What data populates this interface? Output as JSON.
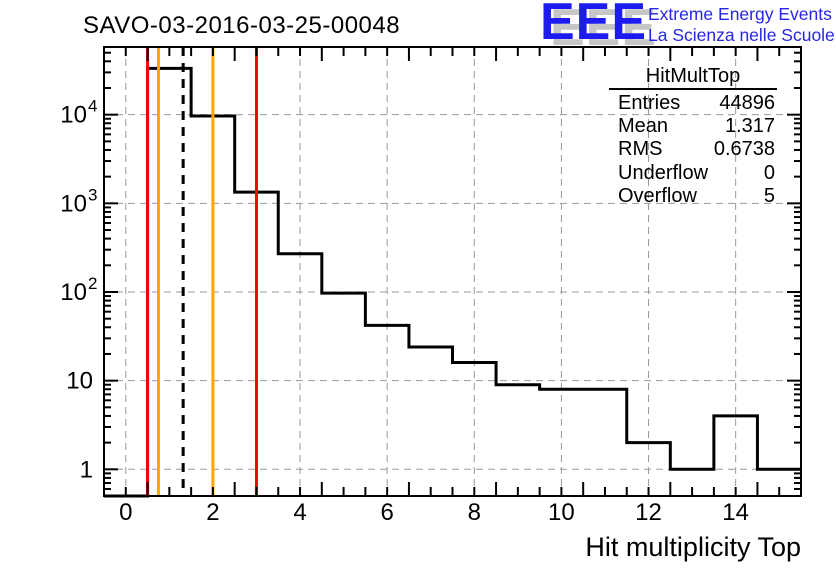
{
  "header": {
    "title": "SAVO-03-2016-03-25-00048",
    "logo": {
      "acronym": "EEE",
      "line1": "Extreme Energy Events",
      "line2": "La Scienza nelle Scuole",
      "text_color": "#2626e8",
      "shadow_color": "#c6c6c6"
    }
  },
  "stats_box": {
    "title": "HitMultTop",
    "rows": [
      {
        "label": "Entries",
        "value": "44896"
      },
      {
        "label": "Mean",
        "value": "1.317"
      },
      {
        "label": "RMS",
        "value": "0.6738"
      },
      {
        "label": "Underflow",
        "value": "0"
      },
      {
        "label": "Overflow",
        "value": "5"
      }
    ]
  },
  "chart_data": {
    "type": "bar",
    "title": "SAVO-03-2016-03-25-00048",
    "xlabel": "Hit multiplicity Top",
    "ylabel": "",
    "x_scale": "linear",
    "y_scale": "log",
    "xlim": [
      -0.5,
      15.5
    ],
    "ylim": [
      0.5,
      58000
    ],
    "grid": true,
    "grid_color": "#999999",
    "line_color": "#000000",
    "x_major_ticks": [
      0,
      2,
      4,
      6,
      8,
      10,
      12,
      14
    ],
    "x_tick_labels": [
      "0",
      "2",
      "4",
      "6",
      "8",
      "10",
      "12",
      "14"
    ],
    "y_major_ticks": [
      1,
      10,
      100,
      1000,
      10000
    ],
    "bin_width": 1,
    "bin_centers": [
      0,
      1,
      2,
      3,
      4,
      5,
      6,
      7,
      8,
      9,
      10,
      11,
      12,
      13,
      14,
      15
    ],
    "counts": [
      0,
      33300,
      9650,
      1340,
      270,
      97,
      42,
      24,
      16,
      9,
      8,
      8,
      2,
      1,
      4,
      1
    ],
    "marker_lines": [
      {
        "name": "red-limit-low",
        "x": 0.5,
        "color": "#ff0000",
        "style": "solid"
      },
      {
        "name": "orange-limit-low",
        "x": 0.75,
        "color": "#ffa700",
        "style": "solid"
      },
      {
        "name": "mean-marker",
        "x": 1.317,
        "color": "#000000",
        "style": "dashed"
      },
      {
        "name": "orange-limit-high",
        "x": 2,
        "color": "#ffa700",
        "style": "solid"
      },
      {
        "name": "red-limit-high",
        "x": 3,
        "color": "#ff0000",
        "style": "solid"
      }
    ]
  }
}
